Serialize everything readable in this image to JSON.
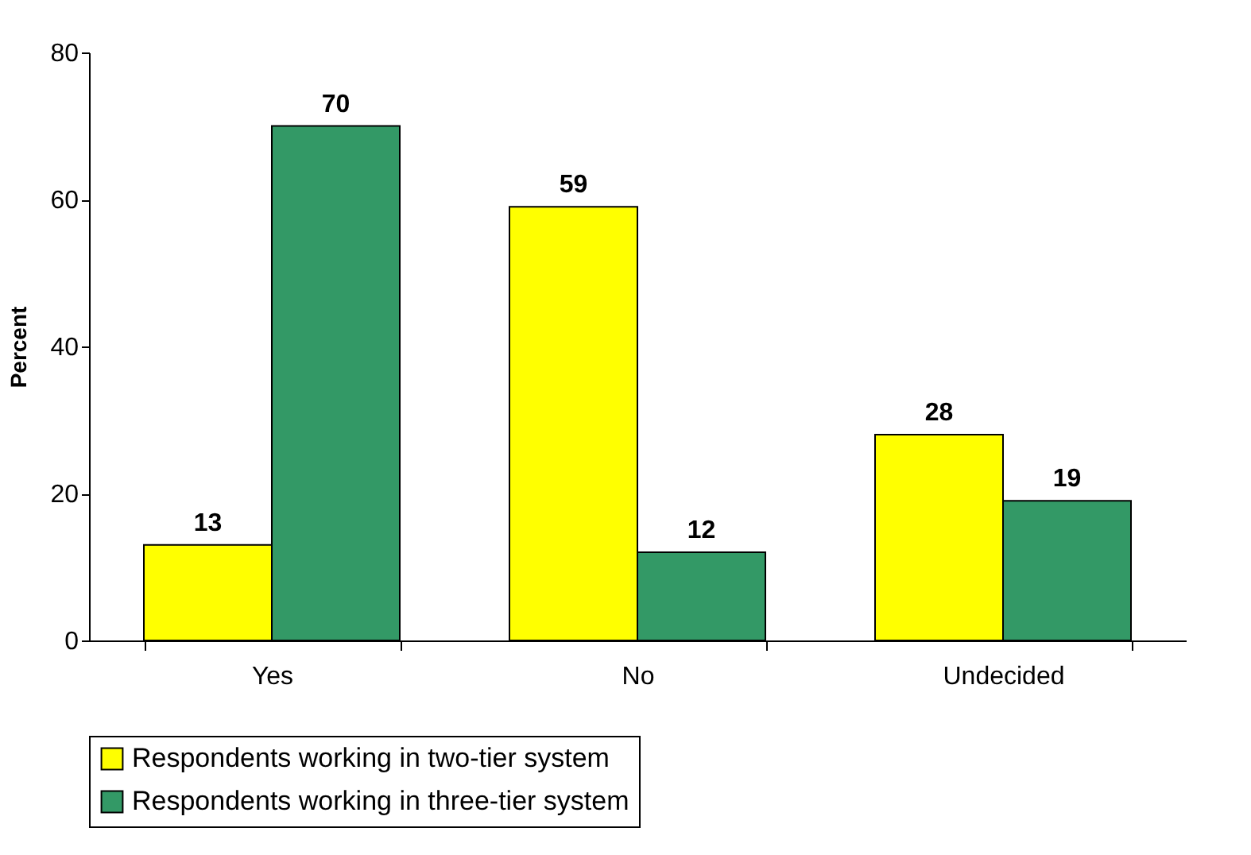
{
  "chart_data": {
    "type": "bar",
    "ylabel": "Percent",
    "categories": [
      "Yes",
      "No",
      "Undecided"
    ],
    "series": [
      {
        "name": "Respondents working in two-tier system",
        "color": "#ffff00",
        "values": [
          13,
          59,
          28
        ]
      },
      {
        "name": "Respondents working in three-tier system",
        "color": "#339966",
        "values": [
          70,
          12,
          19
        ]
      }
    ],
    "ylim": [
      0,
      80
    ],
    "yticks": [
      0,
      20,
      40,
      60,
      80
    ],
    "data_labels": true,
    "legend": "bottom",
    "grid": false
  }
}
